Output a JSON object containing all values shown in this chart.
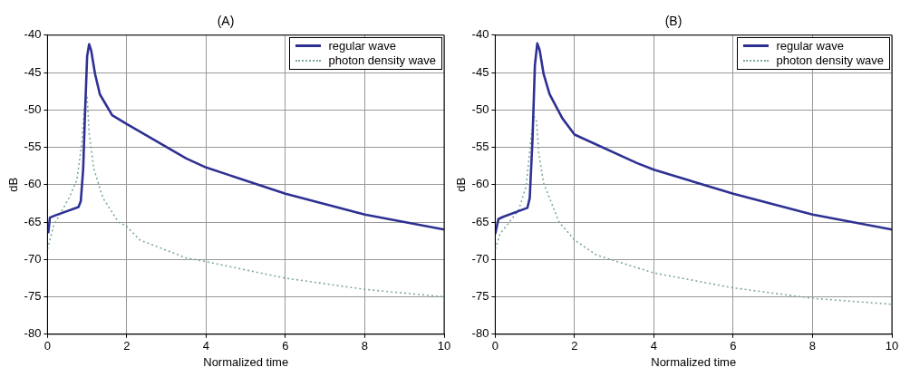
{
  "chart_data": [
    {
      "type": "line",
      "title": "(A)",
      "xlabel": "Normalized time",
      "ylabel": "dB",
      "xlim": [
        0,
        10
      ],
      "ylim": [
        -80,
        -40
      ],
      "xticks": [
        0,
        2,
        4,
        6,
        8,
        10
      ],
      "yticks": [
        -80,
        -75,
        -70,
        -65,
        -60,
        -55,
        -50,
        -45,
        -40
      ],
      "grid": true,
      "legend": "top right",
      "marker": "none",
      "series": [
        {
          "name": "regular wave",
          "color": "#2e3192",
          "line_style": "solid",
          "x": [
            0.02,
            0.06,
            0.2,
            0.78,
            0.84,
            0.9,
            0.95,
            1.0,
            1.05,
            1.1,
            1.2,
            1.32,
            1.63,
            2,
            3.5,
            4,
            6,
            8,
            10
          ],
          "values": [
            -66.5,
            -64.4,
            -64.1,
            -63,
            -62.2,
            -57.9,
            -49.9,
            -42.8,
            -41.2,
            -42,
            -45.2,
            -47.9,
            -50.7,
            -51.9,
            -56.5,
            -57.7,
            -61.2,
            -64,
            -66
          ]
        },
        {
          "name": "photon density wave",
          "color": "#7fa8a0",
          "line_style": "dotted",
          "x": [
            0,
            0.16,
            0.54,
            0.74,
            0.86,
            0.93,
            1.0,
            1.05,
            1.17,
            1.4,
            1.79,
            2,
            2.33,
            3.5,
            4,
            6,
            8,
            10
          ],
          "values": [
            -68.6,
            -65.4,
            -61.8,
            -59.4,
            -54.7,
            -49.9,
            -48.3,
            -53.1,
            -57.9,
            -61.8,
            -65,
            -65.6,
            -67.4,
            -69.8,
            -70.3,
            -72.5,
            -74,
            -75
          ]
        }
      ]
    },
    {
      "type": "line",
      "title": "(B)",
      "xlabel": "Normalized time",
      "ylabel": "dB",
      "xlim": [
        0,
        10
      ],
      "ylim": [
        -80,
        -40
      ],
      "xticks": [
        0,
        2,
        4,
        6,
        8,
        10
      ],
      "yticks": [
        -80,
        -75,
        -70,
        -65,
        -60,
        -55,
        -50,
        -45,
        -40
      ],
      "grid": true,
      "legend": "top right",
      "marker": "none",
      "series": [
        {
          "name": "regular wave",
          "color": "#2e3192",
          "line_style": "solid",
          "x": [
            0,
            0.08,
            0.2,
            0.81,
            0.87,
            0.94,
            1.0,
            1.06,
            1.12,
            1.22,
            1.37,
            1.69,
            2,
            3.57,
            4,
            6,
            8,
            10
          ],
          "values": [
            -66.6,
            -64.6,
            -64.3,
            -63.1,
            -61.8,
            -53.9,
            -44,
            -41.1,
            -42,
            -45.2,
            -47.9,
            -51.1,
            -53.3,
            -57.1,
            -58,
            -61.2,
            -64,
            -66
          ]
        },
        {
          "name": "photon density wave",
          "color": "#7fa8a0",
          "line_style": "dotted",
          "x": [
            0,
            0.12,
            0.59,
            0.78,
            0.9,
            0.98,
            1.04,
            1.1,
            1.22,
            1.61,
            2,
            2.55,
            3.57,
            4,
            6,
            8,
            10
          ],
          "values": [
            -68.6,
            -66.6,
            -63.4,
            -60.2,
            -53.9,
            -50.9,
            -51.5,
            -55.9,
            -59.8,
            -65,
            -67.4,
            -69.4,
            -71.1,
            -71.8,
            -73.8,
            -75.2,
            -76
          ]
        }
      ]
    }
  ]
}
